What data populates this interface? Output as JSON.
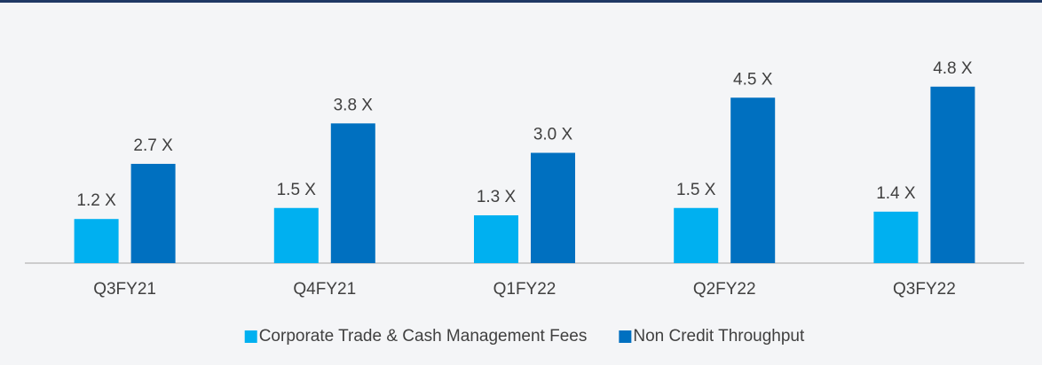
{
  "chart_data": {
    "type": "bar",
    "categories": [
      "Q3FY21",
      "Q4FY21",
      "Q1FY22",
      "Q2FY22",
      "Q3FY22"
    ],
    "series": [
      {
        "name": "Corporate Trade & Cash Management Fees",
        "color": "#00b0f0",
        "values": [
          1.2,
          1.5,
          1.3,
          1.5,
          1.4
        ],
        "value_labels": [
          "1.2 X",
          "1.5 X",
          "1.3 X",
          "1.5 X",
          "1.4 X"
        ]
      },
      {
        "name": "Non Credit Throughput",
        "color": "#0070c0",
        "values": [
          2.7,
          3.8,
          3.0,
          4.5,
          4.8
        ],
        "value_labels": [
          "2.7 X",
          "3.8 X",
          "3.0 X",
          "4.5 X",
          "4.8 X"
        ]
      }
    ],
    "ylim": [
      0,
      6
    ],
    "legend": "bottom"
  }
}
